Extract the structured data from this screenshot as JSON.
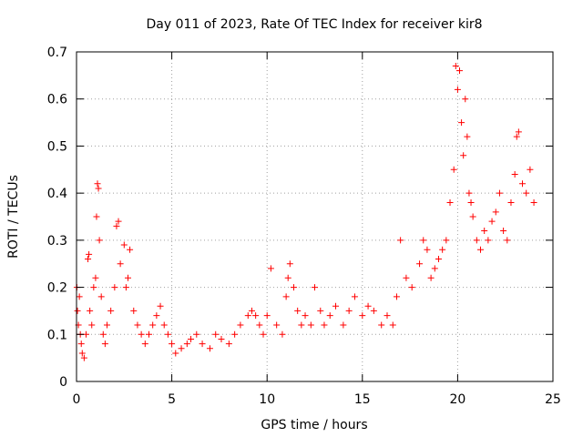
{
  "chart_data": {
    "type": "scatter",
    "title": "Day 011 of 2023, Rate Of TEC Index for receiver kir8",
    "xlabel": "GPS time / hours",
    "ylabel": "ROTI / TECUs",
    "xlim": [
      0,
      25
    ],
    "ylim": [
      0,
      0.7
    ],
    "xticks": [
      0,
      5,
      10,
      15,
      20,
      25
    ],
    "yticks": [
      0,
      0.1,
      0.2,
      0.3,
      0.4,
      0.5,
      0.6,
      0.7
    ],
    "xtick_labels": [
      "0",
      "5",
      "10",
      "15",
      "20",
      "25"
    ],
    "ytick_labels": [
      "0",
      "0.1",
      "0.2",
      "0.3",
      "0.4",
      "0.5",
      "0.6",
      "0.7"
    ],
    "grid": true,
    "marker": "+",
    "color": "#ff0000",
    "series": [
      {
        "name": "ROTI",
        "x": [
          0.02,
          0.05,
          0.1,
          0.15,
          0.2,
          0.25,
          0.3,
          0.4,
          0.5,
          0.6,
          0.65,
          0.7,
          0.8,
          0.9,
          1.0,
          1.05,
          1.1,
          1.15,
          1.2,
          1.3,
          1.4,
          1.5,
          1.6,
          1.8,
          2.0,
          2.1,
          2.2,
          2.3,
          2.5,
          2.6,
          2.7,
          2.8,
          3.0,
          3.2,
          3.4,
          3.6,
          3.8,
          4.0,
          4.2,
          4.4,
          4.6,
          4.8,
          5.0,
          5.2,
          5.5,
          5.8,
          6.0,
          6.3,
          6.6,
          7.0,
          7.3,
          7.6,
          8.0,
          8.3,
          8.6,
          9.0,
          9.2,
          9.4,
          9.6,
          9.8,
          10.0,
          10.2,
          10.5,
          10.8,
          11.0,
          11.1,
          11.2,
          11.4,
          11.6,
          11.8,
          12.0,
          12.3,
          12.5,
          12.8,
          13.0,
          13.3,
          13.6,
          14.0,
          14.3,
          14.6,
          15.0,
          15.3,
          15.6,
          16.0,
          16.3,
          16.6,
          16.8,
          17.0,
          17.3,
          17.6,
          18.0,
          18.2,
          18.4,
          18.6,
          18.8,
          19.0,
          19.2,
          19.4,
          19.6,
          19.8,
          19.9,
          20.0,
          20.1,
          20.2,
          20.3,
          20.4,
          20.5,
          20.6,
          20.7,
          20.8,
          21.0,
          21.2,
          21.4,
          21.6,
          21.8,
          22.0,
          22.2,
          22.4,
          22.6,
          22.8,
          23.0,
          23.1,
          23.2,
          23.4,
          23.6,
          23.8,
          24.0
        ],
        "y": [
          0.2,
          0.15,
          0.12,
          0.18,
          0.1,
          0.08,
          0.06,
          0.05,
          0.1,
          0.26,
          0.27,
          0.15,
          0.12,
          0.2,
          0.22,
          0.35,
          0.42,
          0.41,
          0.3,
          0.18,
          0.1,
          0.08,
          0.12,
          0.15,
          0.2,
          0.33,
          0.34,
          0.25,
          0.29,
          0.2,
          0.22,
          0.28,
          0.15,
          0.12,
          0.1,
          0.08,
          0.1,
          0.12,
          0.14,
          0.16,
          0.12,
          0.1,
          0.08,
          0.06,
          0.07,
          0.08,
          0.09,
          0.1,
          0.08,
          0.07,
          0.1,
          0.09,
          0.08,
          0.1,
          0.12,
          0.14,
          0.15,
          0.14,
          0.12,
          0.1,
          0.14,
          0.24,
          0.12,
          0.1,
          0.18,
          0.22,
          0.25,
          0.2,
          0.15,
          0.12,
          0.14,
          0.12,
          0.2,
          0.15,
          0.12,
          0.14,
          0.16,
          0.12,
          0.15,
          0.18,
          0.14,
          0.16,
          0.15,
          0.12,
          0.14,
          0.12,
          0.18,
          0.3,
          0.22,
          0.2,
          0.25,
          0.3,
          0.28,
          0.22,
          0.24,
          0.26,
          0.28,
          0.3,
          0.38,
          0.45,
          0.67,
          0.62,
          0.66,
          0.55,
          0.48,
          0.6,
          0.52,
          0.4,
          0.38,
          0.35,
          0.3,
          0.28,
          0.32,
          0.3,
          0.34,
          0.36,
          0.4,
          0.32,
          0.3,
          0.38,
          0.44,
          0.52,
          0.53,
          0.42,
          0.4,
          0.45,
          0.38
        ]
      }
    ]
  }
}
